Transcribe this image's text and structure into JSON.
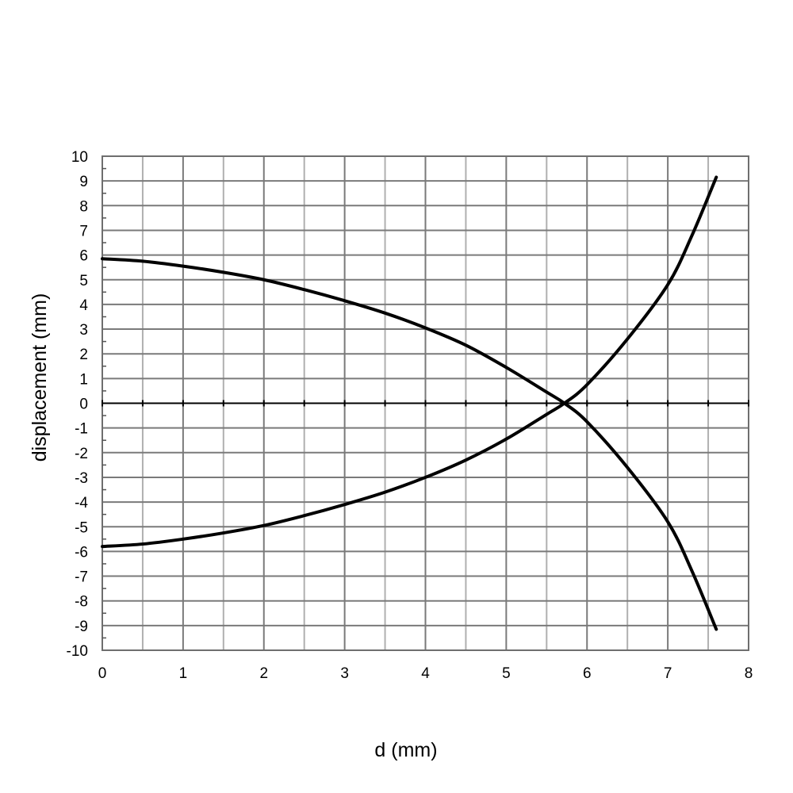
{
  "chart_data": {
    "type": "line",
    "title": "",
    "xlabel": "d (mm)",
    "ylabel": "displacement (mm)",
    "xlim": [
      0,
      8
    ],
    "ylim": [
      -10,
      10
    ],
    "xticks": [
      0,
      1,
      2,
      3,
      4,
      5,
      6,
      7,
      8
    ],
    "yticks": [
      10,
      9,
      8,
      7,
      6,
      5,
      4,
      3,
      2,
      1,
      0,
      -1,
      -2,
      -3,
      -4,
      -5,
      -6,
      -7,
      -8,
      -9,
      -10
    ],
    "grid": true,
    "line_color": "#000000",
    "grid_color": "#888888",
    "series": [
      {
        "x": [
          0,
          0.5,
          1,
          1.5,
          2,
          2.5,
          3,
          3.5,
          4,
          4.5,
          5,
          5.5,
          5.72,
          6,
          6.5,
          7,
          7.3,
          7.6
        ],
        "values": [
          5.85,
          5.75,
          5.55,
          5.3,
          5.0,
          4.6,
          4.15,
          3.65,
          3.05,
          2.35,
          1.45,
          0.45,
          0.0,
          -0.75,
          -2.6,
          -4.8,
          -6.8,
          -9.15
        ]
      },
      {
        "x": [
          0,
          0.5,
          1,
          1.5,
          2,
          2.5,
          3,
          3.5,
          4,
          4.5,
          5,
          5.5,
          5.72,
          6,
          6.5,
          7,
          7.3,
          7.6
        ],
        "values": [
          -5.8,
          -5.7,
          -5.5,
          -5.25,
          -4.95,
          -4.55,
          -4.1,
          -3.6,
          -3.0,
          -2.3,
          -1.45,
          -0.45,
          0.0,
          0.75,
          2.6,
          4.8,
          6.8,
          9.15
        ]
      }
    ]
  }
}
